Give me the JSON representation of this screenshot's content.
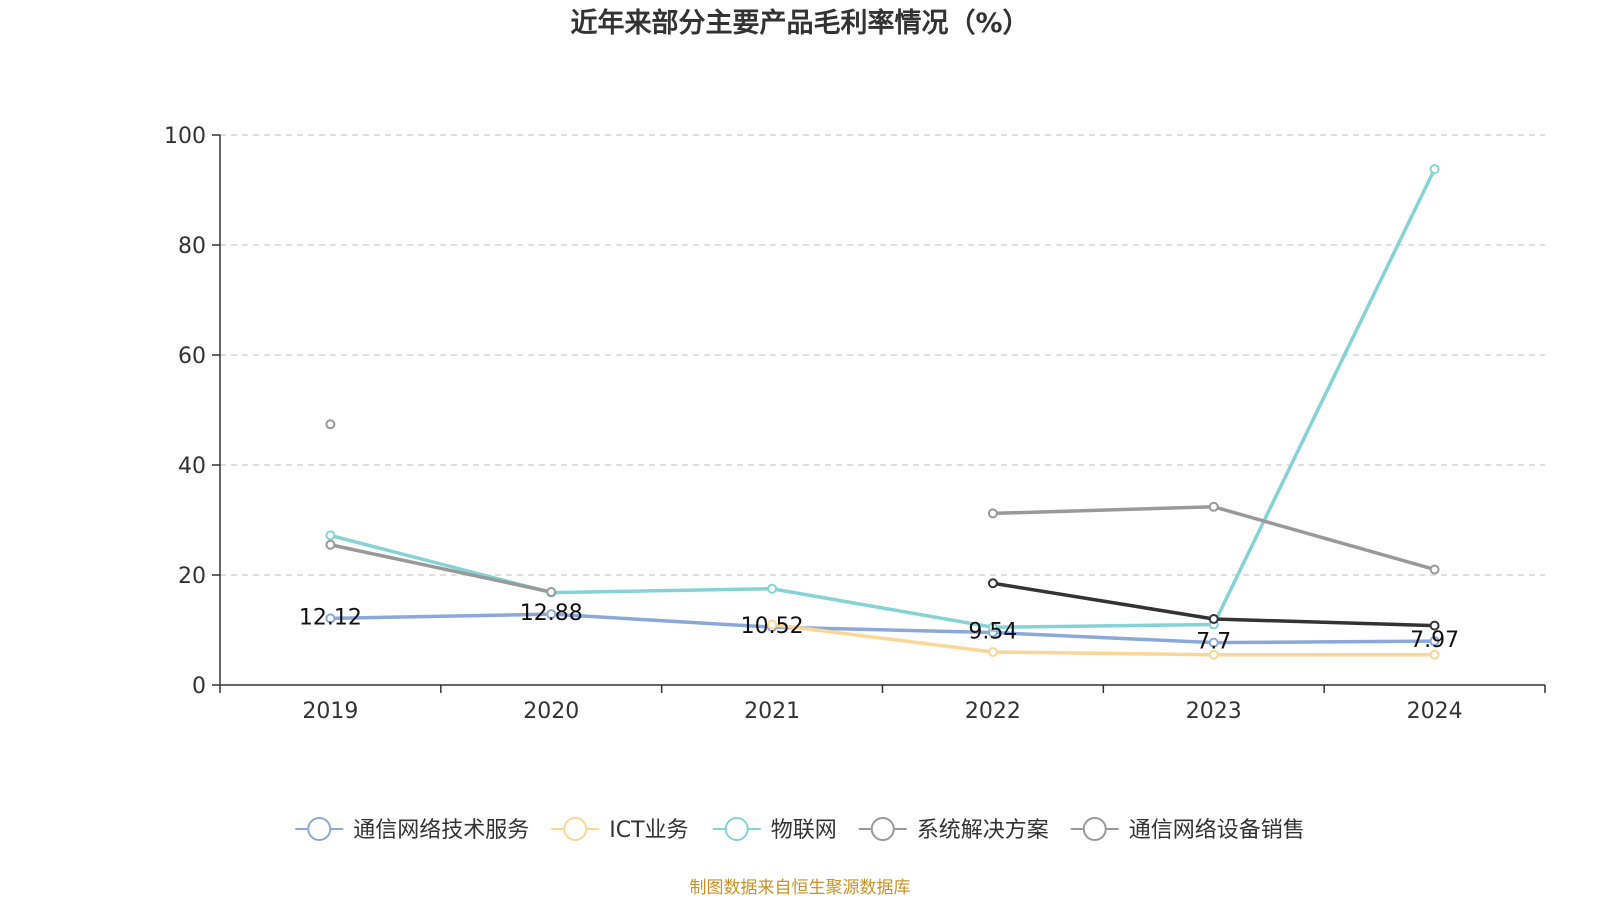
{
  "chart_data": {
    "type": "line",
    "title": "近年来部分主要产品毛利率情况（%）",
    "xlabel": "",
    "ylabel": "",
    "categories": [
      "2019",
      "2020",
      "2021",
      "2022",
      "2023",
      "2024"
    ],
    "ylim": [
      0,
      100
    ],
    "yticks": [
      0,
      20,
      40,
      60,
      80,
      100
    ],
    "grid": true,
    "legend_position": "bottom",
    "series": [
      {
        "name": "通信网络技术服务",
        "color": "#8ca8d8",
        "values": [
          12.12,
          12.88,
          10.52,
          9.54,
          7.7,
          7.97
        ],
        "labels": [
          "12.12",
          "12.88",
          "10.52",
          "9.54",
          "7.7",
          "7.97"
        ]
      },
      {
        "name": "ICT业务",
        "color": "#f9d796",
        "values": [
          null,
          null,
          11.0,
          6.0,
          5.5,
          5.5
        ],
        "labels": []
      },
      {
        "name": "物联网",
        "color": "#85d3d5",
        "values": [
          27.2,
          16.8,
          17.5,
          10.5,
          11.0,
          93.8
        ],
        "labels": []
      },
      {
        "name": "系统解决方案",
        "color": "#999999",
        "values": [
          47.4,
          null,
          null,
          31.2,
          32.4,
          21.0
        ],
        "labels": []
      },
      {
        "name": "通信网络设备销售",
        "color": "#999999",
        "values": [
          25.5,
          16.9,
          null,
          null,
          null,
          null
        ],
        "labels": []
      },
      {
        "name": "",
        "color": "#333333",
        "values": [
          null,
          null,
          null,
          18.5,
          12.0,
          10.8
        ],
        "labels": []
      }
    ]
  },
  "legend": [
    {
      "name": "通信网络技术服务",
      "color": "#8ca8d8"
    },
    {
      "name": "ICT业务",
      "color": "#f9d796"
    },
    {
      "name": "物联网",
      "color": "#85d3d5"
    },
    {
      "name": "系统解决方案",
      "color": "#999999"
    },
    {
      "name": "通信网络设备销售",
      "color": "#999999"
    }
  ],
  "source": "制图数据来自恒生聚源数据库"
}
